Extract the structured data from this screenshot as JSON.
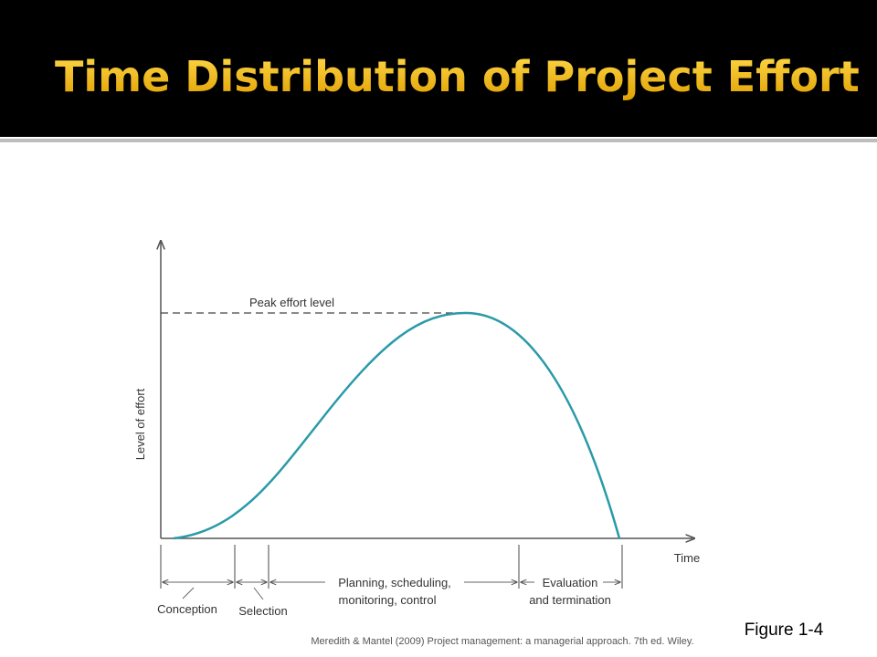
{
  "header": {
    "title": "Time Distribution of Project Effort"
  },
  "figure": {
    "y_axis_label": "Level of effort",
    "x_axis_label": "Time",
    "peak_label": "Peak effort level",
    "phases": [
      {
        "lines": [
          "Conception"
        ]
      },
      {
        "lines": [
          "Selection"
        ]
      },
      {
        "lines": [
          "Planning, scheduling,",
          "monitoring, control"
        ]
      },
      {
        "lines": [
          "Evaluation",
          "and termination"
        ]
      }
    ]
  },
  "caption": "Figure 1-4",
  "citation": "Meredith & Mantel (2009) Project management: a managerial approach. 7th ed. Wiley."
}
